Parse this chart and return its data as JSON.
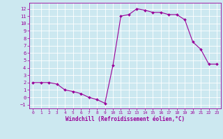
{
  "x": [
    0,
    1,
    2,
    3,
    4,
    5,
    6,
    7,
    8,
    9,
    10,
    11,
    12,
    13,
    14,
    15,
    16,
    17,
    18,
    19,
    20,
    21,
    22,
    23
  ],
  "y": [
    2.0,
    2.0,
    2.0,
    1.8,
    1.0,
    0.8,
    0.5,
    0.0,
    -0.3,
    -0.8,
    4.3,
    11.0,
    11.2,
    12.0,
    11.8,
    11.5,
    11.5,
    11.2,
    11.2,
    10.5,
    7.5,
    6.5,
    4.5,
    4.5
  ],
  "line_color": "#990099",
  "marker": "D",
  "marker_size": 2,
  "bg_color": "#cce8f0",
  "grid_color": "#ffffff",
  "xlabel": "Windchill (Refroidissement éolien,°C)",
  "xlabel_color": "#990099",
  "tick_color": "#990099",
  "ylim": [
    -1.5,
    12.8
  ],
  "xlim": [
    -0.5,
    23.5
  ],
  "yticks": [
    -1,
    0,
    1,
    2,
    3,
    4,
    5,
    6,
    7,
    8,
    9,
    10,
    11,
    12
  ],
  "xticks": [
    0,
    1,
    2,
    3,
    4,
    5,
    6,
    7,
    8,
    9,
    10,
    11,
    12,
    13,
    14,
    15,
    16,
    17,
    18,
    19,
    20,
    21,
    22,
    23
  ]
}
